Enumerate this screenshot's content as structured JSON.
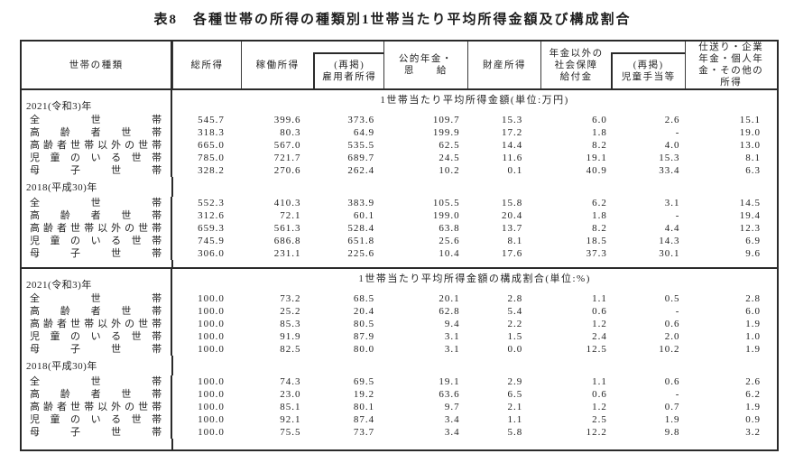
{
  "page": {
    "title": "表8　各種世帯の所得の種類別1世帯当たり平均所得金額及び構成割合"
  },
  "table": {
    "corner_header": "世帯の種類",
    "columns": [
      {
        "label": "総所得"
      },
      {
        "label": "稼働所得"
      },
      {
        "label": "(再掲)\n雇用者所得"
      },
      {
        "label": "公的年金・\n恩　　給"
      },
      {
        "label": "財産所得"
      },
      {
        "label": "年金以外の\n社会保障\n給付金"
      },
      {
        "label": "(再掲)\n児童手当等"
      },
      {
        "label": "仕送り・企業\n年金・個人年\n金・その他の\n所得"
      }
    ],
    "sections": [
      {
        "title": "1世帯当たり平均所得金額(単位:万円)",
        "groups": [
          {
            "year": "2021(令和3)年",
            "rows": [
              {
                "label": "全世帯",
                "values": [
                  "545.7",
                  "399.6",
                  "373.6",
                  "109.7",
                  "15.3",
                  "6.0",
                  "2.6",
                  "15.1"
                ]
              },
              {
                "label": "高齢者世帯",
                "values": [
                  "318.3",
                  "80.3",
                  "64.9",
                  "199.9",
                  "17.2",
                  "1.8",
                  "-",
                  "19.0"
                ]
              },
              {
                "label": "高齢者世帯以外の世帯",
                "values": [
                  "665.0",
                  "567.0",
                  "535.5",
                  "62.5",
                  "14.4",
                  "8.2",
                  "4.0",
                  "13.0"
                ]
              },
              {
                "label": "児童のいる世帯",
                "values": [
                  "785.0",
                  "721.7",
                  "689.7",
                  "24.5",
                  "11.6",
                  "19.1",
                  "15.3",
                  "8.1"
                ]
              },
              {
                "label": "母子世帯",
                "values": [
                  "328.2",
                  "270.6",
                  "262.4",
                  "10.2",
                  "0.1",
                  "40.9",
                  "33.4",
                  "6.3"
                ]
              }
            ]
          },
          {
            "year": "2018(平成30)年",
            "rows": [
              {
                "label": "全世帯",
                "values": [
                  "552.3",
                  "410.3",
                  "383.9",
                  "105.5",
                  "15.8",
                  "6.2",
                  "3.1",
                  "14.5"
                ]
              },
              {
                "label": "高齢者世帯",
                "values": [
                  "312.6",
                  "72.1",
                  "60.1",
                  "199.0",
                  "20.4",
                  "1.8",
                  "-",
                  "19.4"
                ]
              },
              {
                "label": "高齢者世帯以外の世帯",
                "values": [
                  "659.3",
                  "561.3",
                  "528.4",
                  "63.8",
                  "13.7",
                  "8.2",
                  "4.4",
                  "12.3"
                ]
              },
              {
                "label": "児童のいる世帯",
                "values": [
                  "745.9",
                  "686.8",
                  "651.8",
                  "25.6",
                  "8.1",
                  "18.5",
                  "14.3",
                  "6.9"
                ]
              },
              {
                "label": "母子世帯",
                "values": [
                  "306.0",
                  "231.1",
                  "225.6",
                  "10.4",
                  "17.6",
                  "37.3",
                  "30.1",
                  "9.6"
                ]
              }
            ]
          }
        ]
      },
      {
        "title": "1世帯当たり平均所得金額の構成割合(単位:%)",
        "groups": [
          {
            "year": "2021(令和3)年",
            "rows": [
              {
                "label": "全世帯",
                "values": [
                  "100.0",
                  "73.2",
                  "68.5",
                  "20.1",
                  "2.8",
                  "1.1",
                  "0.5",
                  "2.8"
                ]
              },
              {
                "label": "高齢者世帯",
                "values": [
                  "100.0",
                  "25.2",
                  "20.4",
                  "62.8",
                  "5.4",
                  "0.6",
                  "-",
                  "6.0"
                ]
              },
              {
                "label": "高齢者世帯以外の世帯",
                "values": [
                  "100.0",
                  "85.3",
                  "80.5",
                  "9.4",
                  "2.2",
                  "1.2",
                  "0.6",
                  "1.9"
                ]
              },
              {
                "label": "児童のいる世帯",
                "values": [
                  "100.0",
                  "91.9",
                  "87.9",
                  "3.1",
                  "1.5",
                  "2.4",
                  "2.0",
                  "1.0"
                ]
              },
              {
                "label": "母子世帯",
                "values": [
                  "100.0",
                  "82.5",
                  "80.0",
                  "3.1",
                  "0.0",
                  "12.5",
                  "10.2",
                  "1.9"
                ]
              }
            ]
          },
          {
            "year": "2018(平成30)年",
            "rows": [
              {
                "label": "全世帯",
                "values": [
                  "100.0",
                  "74.3",
                  "69.5",
                  "19.1",
                  "2.9",
                  "1.1",
                  "0.6",
                  "2.6"
                ]
              },
              {
                "label": "高齢者世帯",
                "values": [
                  "100.0",
                  "23.0",
                  "19.2",
                  "63.6",
                  "6.5",
                  "0.6",
                  "-",
                  "6.2"
                ]
              },
              {
                "label": "高齢者世帯以外の世帯",
                "values": [
                  "100.0",
                  "85.1",
                  "80.1",
                  "9.7",
                  "2.1",
                  "1.2",
                  "0.7",
                  "1.9"
                ]
              },
              {
                "label": "児童のいる世帯",
                "values": [
                  "100.0",
                  "92.1",
                  "87.4",
                  "3.4",
                  "1.1",
                  "2.5",
                  "1.9",
                  "0.9"
                ]
              },
              {
                "label": "母子世帯",
                "values": [
                  "100.0",
                  "75.5",
                  "73.7",
                  "3.4",
                  "5.8",
                  "12.2",
                  "9.8",
                  "3.2"
                ]
              }
            ]
          }
        ]
      }
    ]
  }
}
